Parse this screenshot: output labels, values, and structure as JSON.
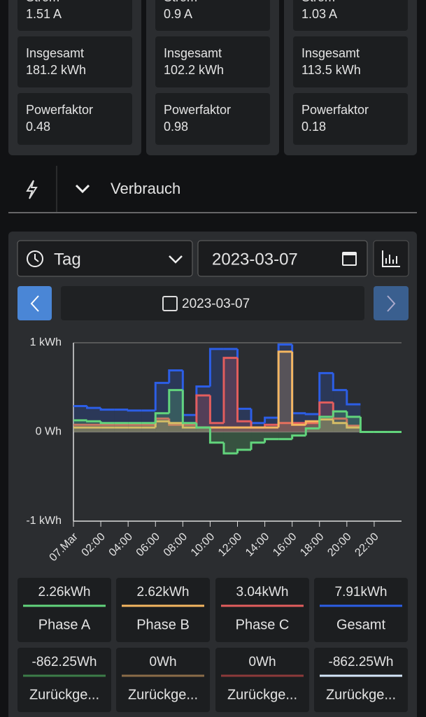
{
  "phases": [
    {
      "current_label": "Strom",
      "current": "1.51 A",
      "total_label": "Insgesamt",
      "total": "181.2 kWh",
      "pf_label": "Powerfaktor",
      "pf": "0.48"
    },
    {
      "current_label": "Strom",
      "current": "0.9 A",
      "total_label": "Insgesamt",
      "total": "102.2 kWh",
      "pf_label": "Powerfaktor",
      "pf": "0.98"
    },
    {
      "current_label": "Strom",
      "current": "1.03 A",
      "total_label": "Insgesamt",
      "total": "113.5 kWh",
      "pf_label": "Powerfaktor",
      "pf": "0.18"
    }
  ],
  "section": {
    "title": "Verbrauch"
  },
  "controls": {
    "period": "Tag",
    "date": "2023-03-07",
    "current_date": "2023-03-07"
  },
  "chart_data": {
    "type": "step",
    "x": [
      0,
      1,
      2,
      3,
      4,
      5,
      6,
      7,
      8,
      9,
      10,
      11,
      12,
      13,
      14,
      15,
      16,
      17,
      18,
      19,
      20,
      21,
      22,
      23
    ],
    "xlim": [
      0,
      24
    ],
    "xticks": [
      {
        "value": 0,
        "label": "07.Mar"
      },
      {
        "value": 2,
        "label": "02:00"
      },
      {
        "value": 4,
        "label": "04:00"
      },
      {
        "value": 6,
        "label": "06:00"
      },
      {
        "value": 8,
        "label": "08:00"
      },
      {
        "value": 10,
        "label": "10:00"
      },
      {
        "value": 12,
        "label": "12:00"
      },
      {
        "value": 14,
        "label": "14:00"
      },
      {
        "value": 16,
        "label": "16:00"
      },
      {
        "value": 18,
        "label": "18:00"
      },
      {
        "value": 20,
        "label": "20:00"
      },
      {
        "value": 22,
        "label": "22:00"
      }
    ],
    "ylim": [
      -1,
      1
    ],
    "yticks": [
      {
        "value": 1,
        "label": "1 kWh"
      },
      {
        "value": 0,
        "label": "0 Wh"
      },
      {
        "value": -1,
        "label": "-1 kWh"
      }
    ],
    "series": [
      {
        "name": "Phase A",
        "color": "#62d47c",
        "values": [
          0.13,
          0.12,
          0.1,
          0.1,
          0.1,
          0.1,
          0.21,
          0.47,
          0.1,
          0.05,
          -0.12,
          -0.24,
          -0.2,
          -0.12,
          -0.08,
          -0.08,
          -0.04,
          0.04,
          0.17,
          0.23,
          0.17,
          0,
          0,
          0
        ]
      },
      {
        "name": "Phase B",
        "color": "#f4b660",
        "values": [
          0.05,
          0.05,
          0.05,
          0.05,
          0.05,
          0.05,
          0.12,
          0.1,
          0.05,
          0.05,
          0.05,
          0.05,
          0.05,
          0.05,
          0.05,
          0.9,
          0.08,
          0.12,
          0.14,
          0.1,
          0.05,
          null,
          null,
          null
        ]
      },
      {
        "name": "Phase C",
        "color": "#e25d5d",
        "values": [
          0.08,
          0.08,
          0.08,
          0.08,
          0.08,
          0.08,
          0.15,
          0.08,
          0.08,
          0.41,
          0.1,
          0.83,
          0.12,
          0.05,
          0.08,
          0.1,
          0.1,
          0.1,
          0.33,
          0.15,
          0.07,
          null,
          null,
          null
        ]
      },
      {
        "name": "Gesamt",
        "color": "#2c5ee6",
        "values": [
          0.29,
          0.27,
          0.25,
          0.25,
          0.24,
          0.24,
          0.55,
          0.69,
          0.19,
          0.51,
          0.93,
          0.93,
          0.26,
          0.1,
          0.16,
          0.98,
          0.21,
          0.2,
          0.66,
          0.47,
          0.31,
          null,
          null,
          null
        ]
      }
    ]
  },
  "summary": {
    "consumed": [
      "2.26kWh",
      "2.62kWh",
      "3.04kWh",
      "7.91kWh"
    ],
    "returned": [
      {
        "value": "-862.25Wh",
        "label": "Zurückge...",
        "color": "#3c7c48"
      },
      {
        "value": "0Wh",
        "label": "Zurückge...",
        "color": "#8a6c48"
      },
      {
        "value": "0Wh",
        "label": "Zurückge...",
        "color": "#8c3a3a"
      },
      {
        "value": "-862.25Wh",
        "label": "Zurückge...",
        "color": "#d4e6f8"
      }
    ]
  }
}
